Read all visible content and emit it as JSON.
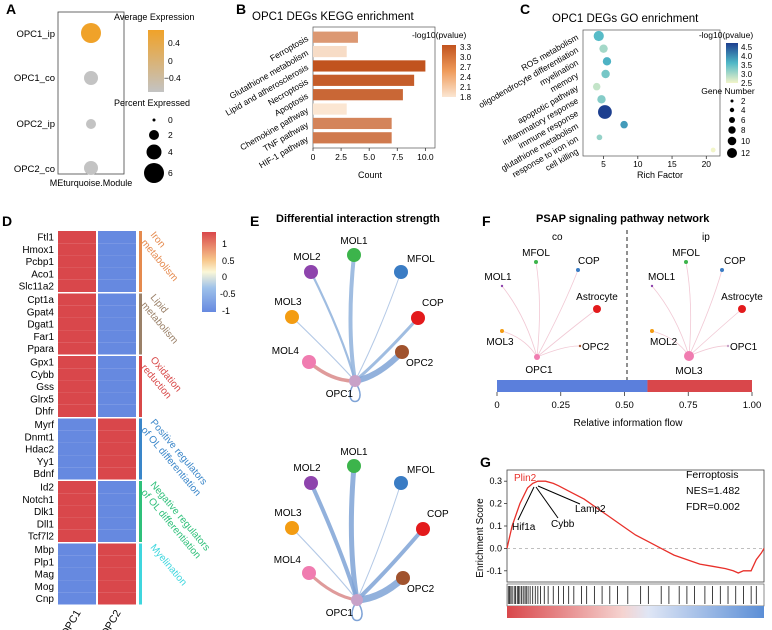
{
  "panels": {
    "A": {
      "letter": "A",
      "rows": [
        "OPC1_ip",
        "OPC1_co",
        "OPC2_ip",
        "OPC2_co"
      ],
      "xlabel": "MEturquoise.Module",
      "legend_expr_title": "Average Expression",
      "legend_expr_ticks": [
        "0.4",
        "0",
        "−0.4"
      ],
      "legend_pct_title": "Percent Expressed",
      "legend_pct_ticks": [
        "0",
        "2",
        "4",
        "6"
      ],
      "colors": {
        "high": "#f0a229",
        "low": "#c3c3c3"
      }
    },
    "B": {
      "letter": "B",
      "title": "OPC1 DEGs KEGG enrichment",
      "xlabel": "Count",
      "legend_title": "-log10(pvalue)",
      "legend_ticks": [
        "3.3",
        "3.0",
        "2.7",
        "2.4",
        "2.1",
        "1.8"
      ],
      "terms": [
        "Ferroptosis",
        "Glutathione metabolism",
        "Lipid and atherosclerosis",
        "Necroptosis",
        "Apoptosis",
        "Chemokine pathway",
        "TNF pathway",
        "HIF-1 pathway"
      ],
      "x_ticks": [
        "0",
        "2.5",
        "5.0",
        "7.5",
        "10.0"
      ]
    },
    "C": {
      "letter": "C",
      "title": "OPC1 DEGs GO enrichment",
      "xlabel": "Rich Factor",
      "terms": [
        "ROS metabolism",
        "oligodendrocyte differentiation",
        "myelination",
        "memory",
        "apoptotic pathway",
        "inflammatory response",
        "immune response",
        "glutathione metabolism",
        "response to iron ion",
        "cell killing"
      ],
      "x_ticks": [
        "5",
        "10",
        "15",
        "20"
      ],
      "legend_color_title": "-log10(pvalue)",
      "legend_color_ticks": [
        "4.5",
        "4.0",
        "3.5",
        "3.0",
        "2.5"
      ],
      "legend_size_title": "Gene Number",
      "legend_size_ticks": [
        "2",
        "4",
        "6",
        "8",
        "10",
        "12"
      ]
    },
    "D": {
      "letter": "D",
      "columns": [
        "OPC1",
        "OPC2"
      ],
      "groups": [
        {
          "genes": [
            "Ftl1",
            "Hmox1",
            "Pcbp1",
            "Aco1",
            "Slc11a2"
          ],
          "label": "Iron\nmetabolism",
          "color": "#e58a4e"
        },
        {
          "genes": [
            "Cpt1a",
            "Gpat4",
            "Dgat1",
            "Far1",
            "Ppara"
          ],
          "label": "Lipid\nmetabolism",
          "color": "#9a8068"
        },
        {
          "genes": [
            "Gpx1",
            "Cybb",
            "Gss",
            "Glrx5",
            "Dhfr"
          ],
          "label": "Oxidation\nreduction",
          "color": "#d84848"
        },
        {
          "genes": [
            "Myrf",
            "Dnmt1",
            "Hdac2",
            "Yy1",
            "Bdnf"
          ],
          "label": "Positive regulators\nof OL differentiation",
          "color": "#3a86c9"
        },
        {
          "genes": [
            "Id2",
            "Notch1",
            "Dlk1",
            "Dll1",
            "Tcf7l2"
          ],
          "label": "Negative regulators\nof OL differentiation",
          "color": "#2fc07a"
        },
        {
          "genes": [
            "Mbp",
            "Plp1",
            "Mag",
            "Mog",
            "Cnp"
          ],
          "label": "Myelination",
          "color": "#3fd6de"
        }
      ],
      "legend_ticks": [
        "1",
        "0.5",
        "0",
        "-0.5",
        "-1"
      ],
      "colors": {
        "red": "#d9474b",
        "blue": "#6689e0"
      }
    },
    "E": {
      "letter": "E",
      "title": "Differential interaction strength",
      "nodes": [
        "MOL1",
        "MOL2",
        "MFOL",
        "MOL3",
        "COP",
        "MOL4",
        "OPC2",
        "OPC1"
      ],
      "node_colors": {
        "MOL1": "#3cb44b",
        "MOL2": "#8e44ad",
        "MFOL": "#3a7cc4",
        "MOL3": "#f39c12",
        "COP": "#e31a1c",
        "MOL4": "#f07cb0",
        "OPC2": "#a0522d",
        "OPC1": "#c8a2c8"
      }
    },
    "F": {
      "letter": "F",
      "title": "PSAP signaling pathway network",
      "left_label": "co",
      "right_label": "ip",
      "left_nodes": [
        "MFOL",
        "COP",
        "MOL1",
        "Astrocyte",
        "MOL3",
        "OPC2",
        "OPC1"
      ],
      "right_nodes": [
        "MFOL",
        "COP",
        "MOL1",
        "Astrocyte",
        "MOL2",
        "OPC1",
        "MOL3"
      ],
      "x_ticks": [
        "0",
        "0.25",
        "0.50",
        "0.75",
        "1.00"
      ],
      "xlabel": "Relative information flow",
      "bar_split_fraction": 0.59,
      "colors": {
        "co": "#5b7fdc",
        "ip": "#d9474b"
      }
    },
    "G": {
      "letter": "G",
      "title": "Ferroptosis",
      "nes": "NES=1.482",
      "fdr": "FDR=0.002",
      "ylabel": "Enrichment Score",
      "y_ticks": [
        "0.3",
        "0.2",
        "0.1",
        "0.0",
        "-0.1"
      ],
      "genes": {
        "top": "Plin2",
        "a": "Hif1a",
        "b": "Cybb",
        "c": "Lamp2"
      },
      "colors": {
        "curve": "#e8302a",
        "top_gene": "#e8302a"
      }
    }
  },
  "chart_data": [
    {
      "type": "scatter",
      "panel": "A",
      "title": "",
      "xlabel": "MEturquoise.Module",
      "categories": [
        "OPC1_ip",
        "OPC1_co",
        "OPC2_ip",
        "OPC2_co"
      ],
      "average_expression": [
        0.5,
        -0.4,
        -0.4,
        -0.4
      ],
      "percent_expressed": [
        6.0,
        5.0,
        3.0,
        5.0
      ]
    },
    {
      "type": "bar",
      "panel": "B",
      "title": "OPC1 DEGs KEGG enrichment",
      "xlabel": "Count",
      "categories": [
        "Ferroptosis",
        "Glutathione metabolism",
        "Lipid and atherosclerosis",
        "Necroptosis",
        "Apoptosis",
        "Chemokine pathway",
        "TNF pathway",
        "HIF-1 pathway"
      ],
      "values": [
        4,
        3,
        10,
        9,
        8,
        3,
        7,
        7
      ],
      "neg_log10_pvalue": [
        2.6,
        1.9,
        3.3,
        3.2,
        3.1,
        1.8,
        2.8,
        2.9
      ],
      "xlim": [
        0,
        10.5
      ]
    },
    {
      "type": "scatter",
      "panel": "C",
      "title": "OPC1 DEGs GO enrichment",
      "xlabel": "Rich Factor",
      "categories": [
        "ROS metabolism",
        "oligodendrocyte differentiation",
        "myelination",
        "memory",
        "apoptotic pathway",
        "inflammatory response",
        "immune response",
        "glutathione metabolism",
        "response to iron ion",
        "cell killing"
      ],
      "rich_factor": [
        4.3,
        5.0,
        5.5,
        5.3,
        4.0,
        4.7,
        5.2,
        8.0,
        4.4,
        21.0
      ],
      "neg_log10_pvalue": [
        3.5,
        3.0,
        3.6,
        3.3,
        2.8,
        3.2,
        4.6,
        3.8,
        3.1,
        2.5
      ],
      "gene_number": [
        8,
        6,
        6,
        6,
        5,
        6,
        12,
        5,
        3,
        2
      ],
      "xlim": [
        2,
        22
      ]
    },
    {
      "type": "heatmap",
      "panel": "D",
      "title": "",
      "columns": [
        "OPC1",
        "OPC2"
      ],
      "rows": [
        "Ftl1",
        "Hmox1",
        "Pcbp1",
        "Aco1",
        "Slc11a2",
        "Cpt1a",
        "Gpat4",
        "Dgat1",
        "Far1",
        "Ppara",
        "Gpx1",
        "Cybb",
        "Gss",
        "Glrx5",
        "Dhfr",
        "Myrf",
        "Dnmt1",
        "Hdac2",
        "Yy1",
        "Bdnf",
        "Id2",
        "Notch1",
        "Dlk1",
        "Dll1",
        "Tcf7l2",
        "Mbp",
        "Plp1",
        "Mag",
        "Mog",
        "Cnp"
      ],
      "values_opc1": [
        1,
        1,
        1,
        1,
        1,
        1,
        1,
        1,
        1,
        1,
        1,
        1,
        1,
        1,
        1,
        -1,
        -1,
        -1,
        -1,
        -1,
        1,
        1,
        1,
        1,
        1,
        -1,
        -1,
        -1,
        -1,
        -1
      ],
      "values_opc2": [
        -1,
        -1,
        -1,
        -1,
        -1,
        -1,
        -1,
        -1,
        -1,
        -1,
        -1,
        -1,
        -1,
        -1,
        -1,
        1,
        1,
        1,
        1,
        1,
        -1,
        -1,
        -1,
        -1,
        -1,
        1,
        1,
        1,
        1,
        1
      ],
      "range": [
        -1,
        1
      ]
    },
    {
      "type": "bar",
      "panel": "F",
      "title": "PSAP signaling pathway network",
      "xlabel": "Relative information flow",
      "categories": [
        "co",
        "ip"
      ],
      "values": [
        0.59,
        0.41
      ],
      "xlim": [
        0,
        1
      ]
    },
    {
      "type": "line",
      "panel": "G",
      "title": "Ferroptosis",
      "ylabel": "Enrichment Score",
      "x": [
        0,
        0.02,
        0.05,
        0.08,
        0.1,
        0.12,
        0.15,
        0.18,
        0.2,
        0.25,
        0.3,
        0.35,
        0.4,
        0.45,
        0.5,
        0.55,
        0.6,
        0.65,
        0.7,
        0.75,
        0.8,
        0.85,
        0.88,
        0.9,
        0.92,
        0.95,
        0.97,
        0.99,
        1.0
      ],
      "y": [
        0.0,
        0.1,
        0.2,
        0.27,
        0.29,
        0.3,
        0.3,
        0.29,
        0.28,
        0.25,
        0.22,
        0.18,
        0.14,
        0.1,
        0.06,
        0.03,
        0.0,
        -0.03,
        -0.05,
        -0.07,
        -0.08,
        -0.09,
        -0.1,
        -0.11,
        -0.1,
        -0.1,
        -0.05,
        -0.02,
        0.0
      ],
      "ylim": [
        -0.15,
        0.35
      ]
    }
  ]
}
